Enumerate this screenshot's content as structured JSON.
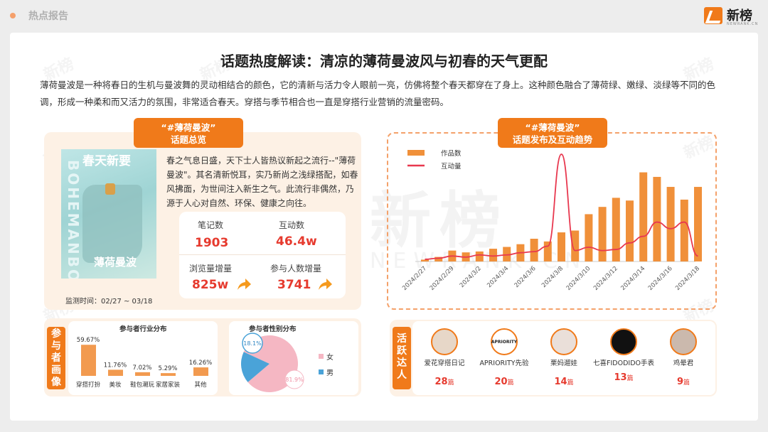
{
  "header": {
    "section_label": "热点报告",
    "logo_text": "新榜",
    "logo_sub": "NEWRANK.CN"
  },
  "watermark": {
    "text": "新榜",
    "sub": "NEWRANK.CN"
  },
  "title": "话题热度解读：清凉的薄荷曼波风与初春的天气更配",
  "intro": "薄荷曼波是一种将春日的生机与曼波舞的灵动相结合的颜色，它的清新与活力令人眼前一亮，仿佛将整个春天都穿在了身上。这种颜色融合了薄荷绿、嫩绿、淡绿等不同的色调，形成一种柔和而又活力的氛围，非常适合春天。穿搭与季节相合也一直是穿搭行业营销的流量密码。",
  "overview": {
    "tag_line1": "“#薄荷曼波”",
    "tag_line2": "话题总览",
    "photo_header": "春天新要",
    "photo_side": "BOHEMANBO",
    "photo_title": "薄荷曼波",
    "description": "春之气息日盛，天下士人皆热议新起之流行--\"薄荷曼波\"。其名清新悦耳，实乃新尚之浅绿搭配，如春风拂面，为世间注入新生之气。此流行非偶然，乃源于人心对自然、环保、健康之向往。",
    "stats": [
      {
        "label": "笔记数",
        "value": "1903"
      },
      {
        "label": "互动数",
        "value": "46.4w"
      },
      {
        "label": "浏览量增量",
        "value": "825w",
        "trend": "up"
      },
      {
        "label": "参与人数增量",
        "value": "3741",
        "trend": "up"
      }
    ],
    "monitor": "监测时间：02/27 ~ 03/18"
  },
  "trend": {
    "tag_line1": "“#薄荷曼波”",
    "tag_line2": "话题发布及互动趋势",
    "legend_bar": "作品数",
    "legend_line": "互动量"
  },
  "chart_data": {
    "type": "bar",
    "x": [
      "2024/2/27",
      "2024/2/28",
      "2024/2/29",
      "2024/3/1",
      "2024/3/2",
      "2024/3/3",
      "2024/3/4",
      "2024/3/5",
      "2024/3/6",
      "2024/3/7",
      "2024/3/8",
      "2024/3/9",
      "2024/3/10",
      "2024/3/11",
      "2024/3/12",
      "2024/3/13",
      "2024/3/14",
      "2024/3/15",
      "2024/3/16",
      "2024/3/17",
      "2024/3/18"
    ],
    "tick_labels": [
      "2024/2/27",
      "2024/2/29",
      "2024/3/2",
      "2024/3/4",
      "2024/3/6",
      "2024/3/8",
      "2024/3/10",
      "2024/3/12",
      "2024/3/14",
      "2024/3/16",
      "2024/3/18"
    ],
    "series": [
      {
        "name": "作品数",
        "type": "bar",
        "color": "#f0903a",
        "values": [
          2,
          5,
          12,
          10,
          11,
          14,
          16,
          19,
          25,
          22,
          32,
          34,
          52,
          60,
          70,
          67,
          98,
          93,
          82,
          68,
          82
        ]
      },
      {
        "name": "互动量",
        "type": "line",
        "color": "#e8384f",
        "values": [
          2,
          3,
          5,
          4,
          6,
          5,
          6,
          8,
          9,
          14,
          98,
          10,
          13,
          10,
          11,
          17,
          23,
          36,
          30,
          36,
          5
        ]
      }
    ]
  },
  "portrait": {
    "tag": "参与者画像",
    "industry": {
      "title": "参与者行业分布",
      "categories": [
        "穿搭打扮",
        "美妆",
        "鞋包潮玩",
        "家居家装",
        "其他"
      ],
      "values": [
        59.67,
        11.76,
        7.02,
        5.29,
        16.26
      ],
      "labels": [
        "59.67%",
        "11.76%",
        "7.02%",
        "5.29%",
        "16.26%"
      ]
    },
    "gender": {
      "title": "参与者性别分布",
      "slices": [
        {
          "label": "女",
          "value": 81.9,
          "text": "81.9%",
          "color": "#f5b7c3"
        },
        {
          "label": "男",
          "value": 18.1,
          "text": "18.1%",
          "color": "#4aa3d8"
        }
      ]
    }
  },
  "kol": {
    "tag": "活跃达人",
    "items": [
      {
        "name": "爱花穿搭日记",
        "count": "28",
        "unit": "篇"
      },
      {
        "name": "APRIORITY先验",
        "count": "20",
        "unit": "篇",
        "avatar_text": "APRIORITY"
      },
      {
        "name": "栗妈遛娃",
        "count": "14",
        "unit": "篇"
      },
      {
        "name": "七喜FIDODIDO手表",
        "count": "13",
        "unit": "篇"
      },
      {
        "name": "鸡晕君",
        "count": "9",
        "unit": "篇"
      }
    ]
  }
}
